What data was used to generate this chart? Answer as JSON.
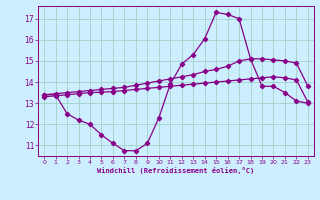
{
  "xlabel": "Windchill (Refroidissement éolien,°C)",
  "bg_color": "#cceeff",
  "line_color": "#880088",
  "grid_color": "#99ccbb",
  "xlim": [
    -0.5,
    23.5
  ],
  "ylim": [
    10.5,
    17.6
  ],
  "xticks": [
    0,
    1,
    2,
    3,
    4,
    5,
    6,
    7,
    8,
    9,
    10,
    11,
    12,
    13,
    14,
    15,
    16,
    17,
    18,
    19,
    20,
    21,
    22,
    23
  ],
  "yticks": [
    11,
    12,
    13,
    14,
    15,
    16,
    17
  ],
  "line1_x": [
    0,
    1,
    2,
    3,
    4,
    5,
    6,
    7,
    8,
    9,
    10,
    11,
    12,
    13,
    14,
    15,
    16,
    17,
    18,
    19,
    20,
    21,
    22,
    23
  ],
  "line1_y": [
    13.4,
    13.4,
    12.5,
    12.2,
    12.0,
    11.5,
    11.1,
    10.75,
    10.75,
    11.1,
    12.3,
    13.9,
    14.85,
    15.3,
    16.05,
    17.3,
    17.2,
    17.0,
    15.1,
    13.8,
    13.8,
    13.5,
    13.1,
    13.0
  ],
  "line2_x": [
    0,
    1,
    2,
    3,
    4,
    5,
    6,
    7,
    8,
    9,
    10,
    11,
    12,
    13,
    14,
    15,
    16,
    17,
    18,
    19,
    20,
    21,
    22,
    23
  ],
  "line2_y": [
    13.4,
    13.45,
    13.5,
    13.55,
    13.6,
    13.65,
    13.7,
    13.75,
    13.85,
    13.95,
    14.05,
    14.15,
    14.25,
    14.35,
    14.5,
    14.6,
    14.75,
    15.0,
    15.1,
    15.1,
    15.05,
    15.0,
    14.9,
    13.8
  ],
  "line3_x": [
    0,
    1,
    2,
    3,
    4,
    5,
    6,
    7,
    8,
    9,
    10,
    11,
    12,
    13,
    14,
    15,
    16,
    17,
    18,
    19,
    20,
    21,
    22,
    23
  ],
  "line3_y": [
    13.3,
    13.35,
    13.4,
    13.45,
    13.5,
    13.52,
    13.55,
    13.6,
    13.65,
    13.7,
    13.75,
    13.8,
    13.85,
    13.9,
    13.95,
    14.0,
    14.05,
    14.1,
    14.15,
    14.2,
    14.25,
    14.2,
    14.1,
    13.05
  ]
}
